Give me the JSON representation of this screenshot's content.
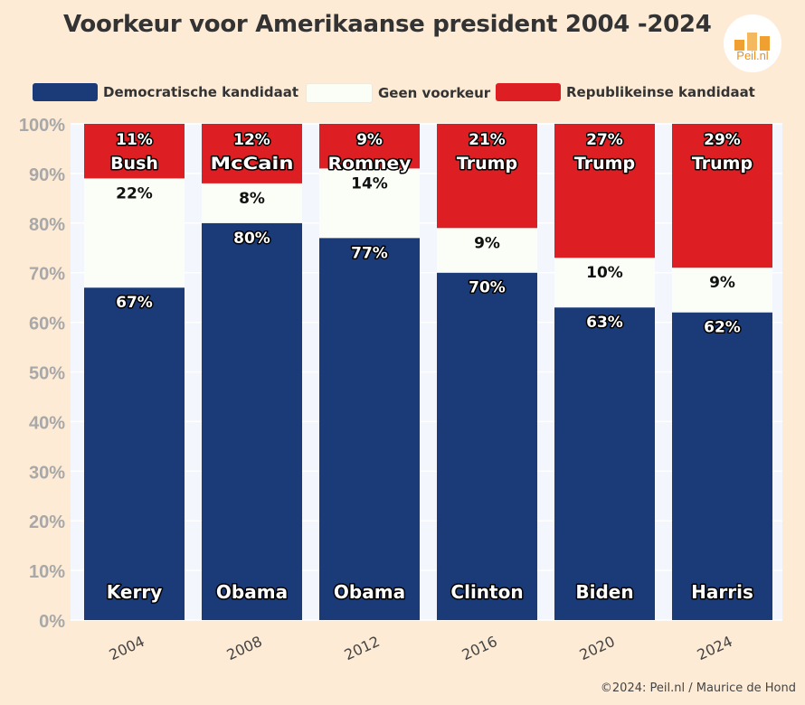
{
  "title": "Voorkeur voor Amerikaanse president 2004 -2024",
  "logo": {
    "text": "Peil.nl"
  },
  "footer": "©2024: Peil.nl / Maurice de Hond",
  "legend": [
    {
      "label": "Democratische kandidaat",
      "color": "#1a3a78"
    },
    {
      "label": "Geen voorkeur",
      "color": "#fafef6"
    },
    {
      "label": "Republikeinse kandidaat",
      "color": "#dd1e22"
    }
  ],
  "chart_data": {
    "type": "bar",
    "stacked": true,
    "categories": [
      "2004",
      "2008",
      "2012",
      "2016",
      "2020",
      "2024"
    ],
    "ylim": [
      0,
      100
    ],
    "yticks": [
      "0%",
      "10%",
      "20%",
      "30%",
      "40%",
      "50%",
      "60%",
      "70%",
      "80%",
      "90%",
      "100%"
    ],
    "series": [
      {
        "name": "Democratische kandidaat",
        "values": [
          67,
          80,
          77,
          70,
          63,
          62
        ],
        "labels": [
          "67%",
          "80%",
          "77%",
          "70%",
          "63%",
          "62%"
        ]
      },
      {
        "name": "Geen voorkeur",
        "values": [
          22,
          8,
          14,
          9,
          10,
          9
        ],
        "labels": [
          "22%",
          "8%",
          "14%",
          "9%",
          "10%",
          "9%"
        ]
      },
      {
        "name": "Republikeinse kandidaat",
        "values": [
          11,
          12,
          9,
          21,
          27,
          29
        ],
        "labels": [
          "11%",
          "12%",
          "9%",
          "21%",
          "27%",
          "29%"
        ]
      }
    ],
    "dem_candidates": [
      "Kerry",
      "Obama",
      "Obama",
      "Clinton",
      "Biden",
      "Harris"
    ],
    "rep_candidates": [
      "Bush",
      "McCain",
      "Romney",
      "Trump",
      "Trump",
      "Trump"
    ],
    "grid": true,
    "legend_position": "top"
  }
}
